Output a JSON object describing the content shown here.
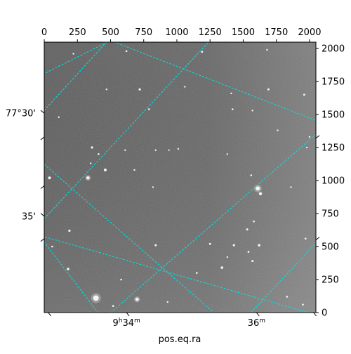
{
  "chart_data": {
    "type": "image",
    "image_description": "grayscale astronomical star field",
    "x": {
      "range": [
        0,
        2048
      ],
      "ticks": [
        0,
        250,
        500,
        750,
        1000,
        1250,
        1500,
        1750,
        2000
      ]
    },
    "y": {
      "range": [
        0,
        2048
      ],
      "ticks": [
        0,
        250,
        500,
        750,
        1000,
        1250,
        1500,
        1750,
        2000
      ]
    },
    "wcs": {
      "xlabel": "pos.eq.ra",
      "ra_labels": [
        {
          "text": "9h34m",
          "x": 620
        },
        {
          "text": "36m",
          "x": 1600
        }
      ],
      "dec_labels": [
        {
          "text": "77°30'",
          "y": 1510
        },
        {
          "text": "35'",
          "y": 730
        }
      ],
      "grid_color": "#00e5e5",
      "grid_style": "dashed",
      "grid_lines": [
        [
          [
            -20,
            1510
          ],
          [
            480,
            2060
          ]
        ],
        [
          [
            -20,
            690
          ],
          [
            1250,
            2060
          ]
        ],
        [
          [
            480,
            -20
          ],
          [
            2060,
            1360
          ]
        ],
        [
          [
            1540,
            -20
          ],
          [
            2060,
            540
          ]
        ],
        [
          [
            -20,
            580
          ],
          [
            2060,
            -20
          ]
        ],
        [
          [
            500,
            2060
          ],
          [
            2060,
            1450
          ]
        ],
        [
          [
            -20,
            560
          ],
          [
            420,
            -20
          ]
        ]
      ],
      "grid_lines_extra": [
        [
          [
            -20,
            1140
          ],
          [
            1300,
            -20
          ]
        ],
        [
          [
            500,
            2060
          ],
          [
            -20,
            1800
          ]
        ]
      ]
    },
    "stars": [
      [
        220,
        1960,
        1.2
      ],
      [
        620,
        1980,
        1.3
      ],
      [
        1190,
        1975,
        1.4
      ],
      [
        1680,
        1990,
        1.2
      ],
      [
        470,
        1690,
        1.2
      ],
      [
        720,
        1690,
        1.6
      ],
      [
        1410,
        1660,
        1.2
      ],
      [
        1690,
        1690,
        1.5
      ],
      [
        1960,
        1650,
        1.4
      ],
      [
        790,
        1540,
        1.3
      ],
      [
        1420,
        1540,
        1.3
      ],
      [
        1570,
        1530,
        1.2
      ],
      [
        360,
        1250,
        1.6
      ],
      [
        410,
        1200,
        1.3
      ],
      [
        610,
        1230,
        1.2
      ],
      [
        840,
        1230,
        1.2
      ],
      [
        940,
        1230,
        1.1
      ],
      [
        1010,
        1240,
        1.2
      ],
      [
        1380,
        1200,
        1.2
      ],
      [
        1980,
        1250,
        1.2
      ],
      [
        350,
        1130,
        1.2
      ],
      [
        460,
        1080,
        2.0
      ],
      [
        330,
        1020,
        2.3
      ],
      [
        40,
        1020,
        2.0
      ],
      [
        680,
        1080,
        1.2
      ],
      [
        820,
        950,
        1.2
      ],
      [
        1560,
        1040,
        1.3
      ],
      [
        1610,
        940,
        3.0
      ],
      [
        1630,
        900,
        2.2
      ],
      [
        1860,
        950,
        1.2
      ],
      [
        1580,
        690,
        1.3
      ],
      [
        1530,
        630,
        1.5
      ],
      [
        1970,
        560,
        1.3
      ],
      [
        190,
        620,
        1.6
      ],
      [
        840,
        510,
        1.5
      ],
      [
        1250,
        520,
        1.5
      ],
      [
        1430,
        510,
        1.6
      ],
      [
        1540,
        460,
        1.4
      ],
      [
        1620,
        510,
        1.8
      ],
      [
        1570,
        390,
        1.5
      ],
      [
        1340,
        340,
        1.8
      ],
      [
        1150,
        300,
        1.3
      ],
      [
        180,
        330,
        1.8
      ],
      [
        60,
        500,
        1.3
      ],
      [
        580,
        250,
        1.3
      ],
      [
        390,
        110,
        4.0
      ],
      [
        700,
        100,
        2.4
      ],
      [
        520,
        50,
        1.4
      ],
      [
        930,
        80,
        1.2
      ],
      [
        1830,
        120,
        1.3
      ],
      [
        1950,
        60,
        1.3
      ],
      [
        1380,
        420,
        1.2
      ],
      [
        2000,
        1330,
        1.2
      ],
      [
        110,
        1480,
        1.2
      ],
      [
        1760,
        1380,
        1.2
      ],
      [
        1060,
        1710,
        1.2
      ]
    ]
  }
}
